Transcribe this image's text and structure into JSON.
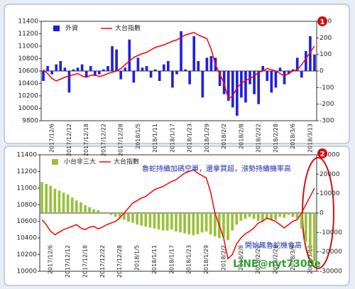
{
  "chart_data": [
    {
      "type": "bar",
      "badge": "1",
      "legend": "upper left",
      "grid": false,
      "categories": [
        null,
        null,
        "2017/12/6",
        null,
        null,
        null,
        "2017/12/12",
        null,
        null,
        null,
        "2017/12/18",
        null,
        null,
        null,
        "2017/12/22",
        null,
        null,
        null,
        "2017/12/28",
        null,
        null,
        null,
        "2018/1/5",
        null,
        null,
        null,
        "2018/1/11",
        null,
        null,
        null,
        "2018/1/17",
        null,
        null,
        null,
        "2018/1/23",
        null,
        null,
        null,
        "2018/1/29",
        null,
        null,
        null,
        "2018/2/2",
        null,
        null,
        null,
        "2018/2/8",
        null,
        null,
        null,
        "2018/2/22",
        null,
        null,
        null,
        "2018/2/28",
        null,
        null,
        null,
        "2018/3/6",
        null,
        null,
        null,
        "2018/3/13",
        null
      ],
      "ylim": [
        9800,
        11400
      ],
      "yticks": [
        9800,
        10000,
        10200,
        10400,
        10600,
        10800,
        11000,
        11200,
        11400
      ],
      "y2lim": [
        -300,
        300
      ],
      "y2ticks": [
        -300,
        -200,
        -100,
        0,
        100,
        200,
        300
      ],
      "series": [
        {
          "name": "外資",
          "type": "bar",
          "axis": "y2",
          "color": "#1f1fe0",
          "values": [
            -60,
            30,
            -20,
            40,
            60,
            20,
            -130,
            10,
            20,
            40,
            -40,
            30,
            -30,
            -20,
            10,
            30,
            150,
            130,
            -50,
            20,
            190,
            -70,
            80,
            20,
            30,
            -40,
            10,
            -60,
            40,
            60,
            -100,
            -20,
            240,
            10,
            -80,
            210,
            60,
            -160,
            80,
            90,
            80,
            -90,
            -140,
            -180,
            -220,
            -270,
            -160,
            -190,
            -80,
            -140,
            -200,
            30,
            -60,
            -130,
            -100,
            20,
            -80,
            -20,
            10,
            80,
            -40,
            120,
            210,
            100
          ]
        },
        {
          "name": "大台指數",
          "type": "line",
          "color": "#ff0000",
          "values": [
            10620,
            10560,
            10480,
            10440,
            10470,
            10500,
            10520,
            10540,
            10560,
            10520,
            10500,
            10530,
            10540,
            10510,
            10530,
            10560,
            10580,
            10600,
            10640,
            10700,
            10760,
            10820,
            10850,
            10880,
            10900,
            10940,
            10980,
            11000,
            11020,
            11050,
            11080,
            11100,
            11140,
            11180,
            11200,
            11220,
            11180,
            11150,
            11120,
            10950,
            10700,
            10550,
            10400,
            10150,
            10200,
            10330,
            10400,
            10450,
            10480,
            10520,
            10580,
            10600,
            10640,
            10620,
            10600,
            10560,
            10520,
            10560,
            10600,
            10620,
            10700,
            10800,
            10900,
            11000
          ]
        }
      ]
    },
    {
      "type": "bar",
      "badge": "2",
      "legend": "upper left",
      "grid": false,
      "categories": [
        null,
        null,
        "2017/12/6",
        null,
        null,
        null,
        "2017/12/12",
        null,
        null,
        null,
        "2017/12/18",
        null,
        null,
        null,
        "2017/12/22",
        null,
        null,
        null,
        "2017/12/28",
        null,
        null,
        null,
        "2018/1/5",
        null,
        null,
        null,
        "2018/1/11",
        null,
        null,
        null,
        "2018/1/17",
        null,
        null,
        null,
        "2018/1/23",
        null,
        null,
        null,
        "2018/1/29",
        null,
        null,
        null,
        "2018/2/2",
        null,
        null,
        null,
        "2018/2/8",
        null,
        null,
        null,
        "2018/2/22",
        null,
        null,
        null,
        "2018/2/28",
        null,
        null,
        null,
        "2018/3/6",
        null,
        null,
        null,
        "2018/3/13",
        null
      ],
      "ylim": [
        10000,
        11400
      ],
      "yticks": [
        10000,
        10200,
        10400,
        10600,
        10800,
        11000,
        11200,
        11400
      ],
      "y2lim": [
        -30000,
        30000
      ],
      "y2ticks": [
        -30000,
        -20000,
        -10000,
        0,
        10000,
        20000,
        30000
      ],
      "series": [
        {
          "name": "小台非三大",
          "type": "bar",
          "axis": "y2",
          "color": "#99c13a",
          "values": [
            16000,
            15000,
            14000,
            12500,
            11500,
            10500,
            9500,
            8000,
            6500,
            5500,
            4000,
            3000,
            2000,
            1500,
            500,
            -500,
            -1000,
            -2000,
            -2500,
            -3500,
            -4500,
            -5000,
            -6000,
            -6500,
            -7000,
            -7500,
            -8000,
            -8500,
            -9000,
            -9000,
            -8500,
            -9500,
            -10000,
            -10500,
            -11000,
            -11500,
            -11000,
            -10000,
            -9500,
            -11000,
            -12000,
            -13000,
            -12500,
            -14000,
            -9000,
            -6000,
            -4000,
            -3000,
            -2000,
            -3000,
            -4000,
            -4500,
            -3000,
            -3500,
            -3500,
            -2000,
            -2500,
            -1000,
            -2000,
            -3000,
            -8000,
            -15000,
            -21000,
            -25000
          ]
        },
        {
          "name": "大台指數",
          "type": "line",
          "color": "#ff0000",
          "values": [
            10620,
            10560,
            10480,
            10440,
            10470,
            10500,
            10520,
            10540,
            10560,
            10520,
            10500,
            10530,
            10540,
            10510,
            10530,
            10560,
            10580,
            10600,
            10640,
            10700,
            10760,
            10820,
            10850,
            10880,
            10900,
            10940,
            10980,
            11000,
            11020,
            11050,
            11080,
            11100,
            11140,
            11180,
            11200,
            11220,
            11180,
            11150,
            11120,
            10950,
            10700,
            10550,
            10400,
            10150,
            10200,
            10330,
            10400,
            10450,
            10480,
            10520,
            10580,
            10600,
            10640,
            10620,
            10600,
            10560,
            10520,
            10560,
            10600,
            10620,
            10700,
            10800,
            10900,
            11000
          ]
        }
      ],
      "annotations": [
        "魯蛇持續加碼空單，還拿買超，漲勢持續機率高",
        "開始輒魯蛇機會高",
        "LINE@nyt7300e"
      ]
    }
  ]
}
